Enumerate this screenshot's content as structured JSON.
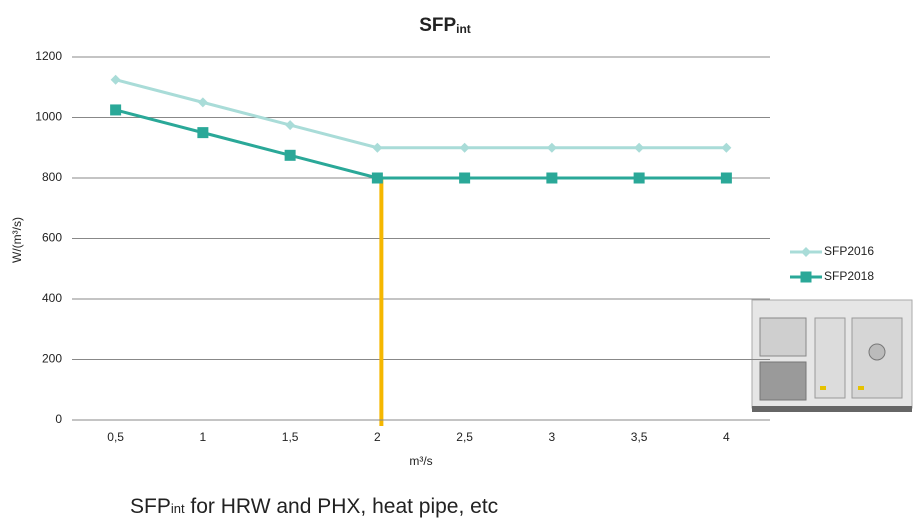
{
  "chart_data": {
    "type": "line",
    "title": {
      "main": "SFP",
      "sub": "int"
    },
    "x_label": "m³/s",
    "y_label": "W/(m³/s)",
    "categories": [
      "0,5",
      "1",
      "1,5",
      "2",
      "2,5",
      "3",
      "3,5",
      "4"
    ],
    "series": [
      {
        "name": "SFP2016",
        "color": "#a9dcd8",
        "marker": "diamond",
        "values": [
          1125,
          1050,
          975,
          900,
          900,
          900,
          900,
          900
        ]
      },
      {
        "name": "SFP2018",
        "color": "#2aa898",
        "marker": "square",
        "values": [
          1025,
          950,
          875,
          800,
          800,
          800,
          800,
          800
        ]
      }
    ],
    "ylim": [
      0,
      1200
    ],
    "yticks": [
      0,
      200,
      400,
      600,
      800,
      1000,
      1200
    ],
    "grid": true,
    "legend": "right",
    "highlight": {
      "category": "2",
      "color": "#f5b700"
    },
    "caption": {
      "main": "SFP",
      "sub": "int",
      "rest": " for HRW and PHX, heat pipe, etc"
    }
  }
}
